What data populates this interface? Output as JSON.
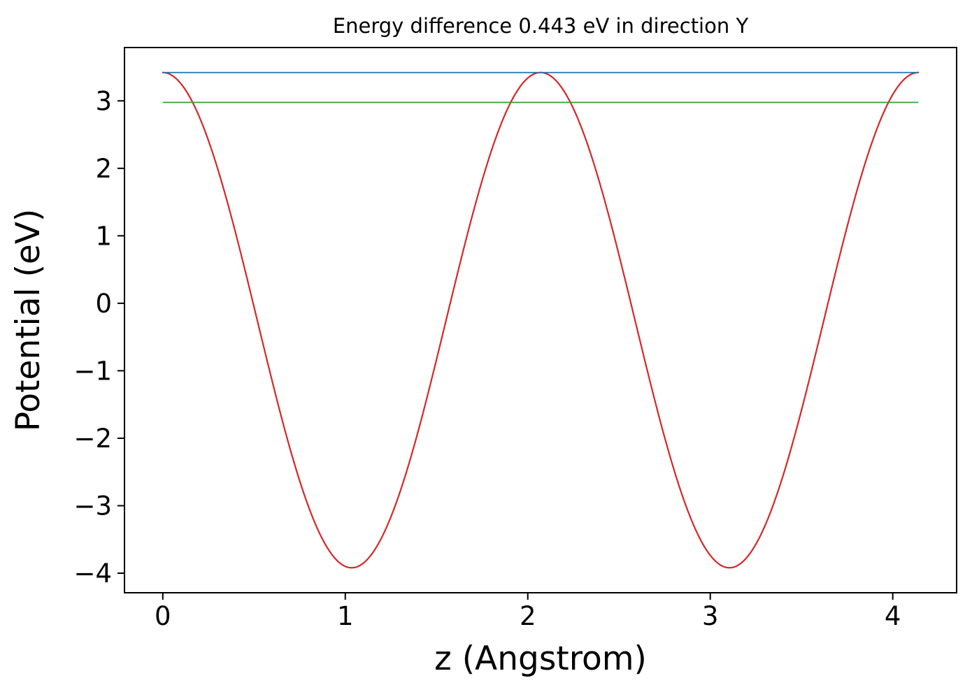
{
  "figure": {
    "background": "#ffffff"
  },
  "chart_data": {
    "type": "line",
    "title": "Energy difference 0.443 eV in direction Y",
    "xlabel": "z (Angstrom)",
    "ylabel": "Potential (eV)",
    "xlim": [
      -0.21,
      4.35
    ],
    "ylim": [
      -4.29,
      3.79
    ],
    "grid": false,
    "legend_position": "none",
    "xticks": {
      "values": [
        0,
        1,
        2,
        3,
        4
      ],
      "labels": [
        "0",
        "1",
        "2",
        "3",
        "4"
      ]
    },
    "yticks": {
      "values": [
        -4,
        -3,
        -2,
        -1,
        0,
        1,
        2,
        3
      ],
      "labels": [
        "−4",
        "−3",
        "−2",
        "−1",
        "0",
        "1",
        "2",
        "3"
      ]
    },
    "series": [
      {
        "name": "potential-curve",
        "type": "cosine",
        "color": "#d62728",
        "linewidth": 2.2,
        "offset": -0.25,
        "amplitude": 3.67,
        "period": 2.07,
        "z_start": 0.0,
        "z_end": 4.14,
        "peak_value": 3.42,
        "min_value": -3.92,
        "peak_positions": [
          0.0,
          2.07,
          4.14
        ],
        "min_positions": [
          1.035,
          3.105
        ]
      },
      {
        "name": "max-potential-line",
        "type": "hline",
        "color": "#1f77b4",
        "linewidth": 1.8,
        "y": 3.42,
        "z_start": 0.0,
        "z_end": 4.14
      },
      {
        "name": "offset-potential-line",
        "type": "hline",
        "color": "#2ca02c",
        "linewidth": 1.8,
        "y": 2.977,
        "z_start": 0.0,
        "z_end": 4.14
      }
    ],
    "annotations": {
      "energy_difference_eV": 0.443,
      "direction": "Y"
    }
  }
}
